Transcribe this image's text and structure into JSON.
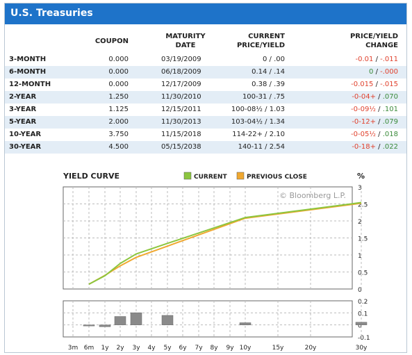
{
  "header": {
    "title": "U.S. Treasuries"
  },
  "table": {
    "columns": {
      "coupon": "COUPON",
      "maturity": [
        "MATURITY",
        "DATE"
      ],
      "price_yield": [
        "CURRENT",
        "PRICE/YIELD"
      ],
      "change": [
        "PRICE/YIELD",
        "CHANGE"
      ]
    },
    "rows": [
      {
        "name": "3-MONTH",
        "coupon": "0.000",
        "maturity": "03/19/2009",
        "price_yield": "0 / .00",
        "price_change": "-0.01",
        "yield_change": "-.011",
        "price_dir": "neg",
        "yield_dir": "neg"
      },
      {
        "name": "6-MONTH",
        "coupon": "0.000",
        "maturity": "06/18/2009",
        "price_yield": "0.14 / .14",
        "price_change": "0",
        "yield_change": "-.000",
        "price_dir": "pos",
        "yield_dir": "neg"
      },
      {
        "name": "12-MONTH",
        "coupon": "0.000",
        "maturity": "12/17/2009",
        "price_yield": "0.38 / .39",
        "price_change": "-0.015",
        "yield_change": "-.015",
        "price_dir": "neg",
        "yield_dir": "neg"
      },
      {
        "name": "2-YEAR",
        "coupon": "1.250",
        "maturity": "11/30/2010",
        "price_yield": "100-31 / .75",
        "price_change": "-0-04+",
        "yield_change": ".070",
        "price_dir": "neg",
        "yield_dir": "pos"
      },
      {
        "name": "3-YEAR",
        "coupon": "1.125",
        "maturity": "12/15/2011",
        "price_yield": "100-08½ / 1.03",
        "price_change": "-0-09½",
        "yield_change": ".101",
        "price_dir": "neg",
        "yield_dir": "pos"
      },
      {
        "name": "5-YEAR",
        "coupon": "2.000",
        "maturity": "11/30/2013",
        "price_yield": "103-04½ / 1.34",
        "price_change": "-0-12+",
        "yield_change": ".079",
        "price_dir": "neg",
        "yield_dir": "pos"
      },
      {
        "name": "10-YEAR",
        "coupon": "3.750",
        "maturity": "11/15/2018",
        "price_yield": "114-22+ / 2.10",
        "price_change": "-0-05½",
        "yield_change": ".018",
        "price_dir": "neg",
        "yield_dir": "pos"
      },
      {
        "name": "30-YEAR",
        "coupon": "4.500",
        "maturity": "05/15/2038",
        "price_yield": "140-11 / 2.54",
        "price_change": "-0-18+",
        "yield_change": ".022",
        "price_dir": "neg",
        "yield_dir": "pos"
      }
    ]
  },
  "chart_data": {
    "type": "line",
    "title": "YIELD CURVE",
    "unit": "%",
    "watermark": "© Bloomberg L.P.",
    "legend": [
      {
        "name": "CURRENT",
        "color": "#8cc63f"
      },
      {
        "name": "PREVIOUS CLOSE",
        "color": "#f0a830"
      }
    ],
    "legend_placement": "top-right",
    "x_tick_labels": [
      "3m",
      "6m",
      "1y",
      "2y",
      "3y",
      "4y",
      "5y",
      "6y",
      "7y",
      "8y",
      "9y",
      "10y",
      "15y",
      "20y",
      "30y"
    ],
    "x": [
      "6m",
      "1y",
      "2y",
      "3y",
      "5y",
      "10y",
      "30y"
    ],
    "series": [
      {
        "name": "CURRENT",
        "values": [
          0.14,
          0.39,
          0.75,
          1.03,
          1.34,
          2.1,
          2.54
        ]
      },
      {
        "name": "PREVIOUS CLOSE",
        "values": [
          0.14,
          0.4,
          0.68,
          0.93,
          1.26,
          2.08,
          2.52
        ]
      }
    ],
    "ylim": [
      0,
      3
    ],
    "yticks": [
      "0",
      "0.5",
      "1",
      "1.5",
      "2",
      "2.5",
      "3"
    ],
    "grid": true,
    "change_chart": {
      "type": "bar",
      "categories": [
        "6m",
        "1y",
        "2y",
        "3y",
        "5y",
        "10y",
        "30y"
      ],
      "values": [
        -0.0,
        -0.015,
        0.07,
        0.101,
        0.079,
        0.018,
        0.022
      ],
      "ylim": [
        -0.1,
        0.2
      ],
      "yticks": [
        "0.2",
        "0.1",
        "0",
        "-0.1"
      ]
    }
  }
}
